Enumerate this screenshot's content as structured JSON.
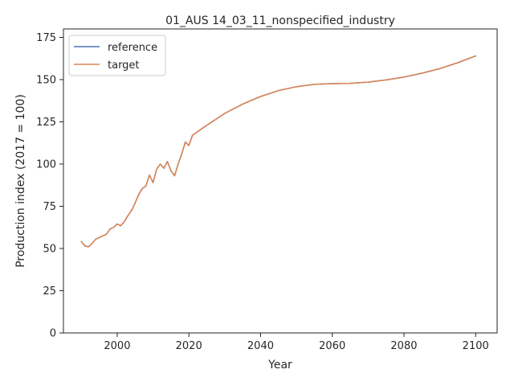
{
  "chart_data": {
    "type": "line",
    "title": "01_AUS 14_03_11_nonspecified_industry",
    "xlabel": "Year",
    "ylabel": "Production index (2017 = 100)",
    "xlim": [
      1985,
      2106
    ],
    "ylim": [
      0,
      180
    ],
    "xticks": [
      2000,
      2020,
      2040,
      2060,
      2080,
      2100
    ],
    "yticks": [
      0,
      25,
      50,
      75,
      100,
      125,
      150,
      175
    ],
    "grid": false,
    "legend_position": "top-left",
    "series": [
      {
        "name": "reference",
        "color": "#4c72b0",
        "x": [
          1990,
          1991,
          1992,
          1993,
          1994,
          1995,
          1996,
          1997,
          1998,
          1999,
          2000,
          2001,
          2002,
          2003,
          2004,
          2005,
          2006,
          2007,
          2008,
          2009,
          2010,
          2011,
          2012,
          2013,
          2014,
          2015,
          2016,
          2017,
          2018,
          2019,
          2020,
          2021,
          2025,
          2030,
          2035,
          2040,
          2045,
          2050,
          2055,
          2060,
          2065,
          2070,
          2075,
          2080,
          2085,
          2090,
          2095,
          2100
        ],
        "y": [
          54,
          51.5,
          51,
          53,
          55.5,
          56.5,
          57.5,
          58.5,
          61.5,
          62.5,
          64.5,
          63.5,
          66,
          69.5,
          72.5,
          77,
          82,
          85.5,
          87,
          93.5,
          89,
          97,
          100,
          97.5,
          101.5,
          96,
          93,
          100,
          106,
          113,
          111,
          117,
          123,
          130,
          135.5,
          140,
          143.5,
          145.8,
          147.2,
          147.6,
          147.8,
          148.5,
          149.8,
          151.5,
          153.8,
          156.5,
          160,
          164
        ]
      },
      {
        "name": "target",
        "color": "#dd8452",
        "x": [
          1990,
          1991,
          1992,
          1993,
          1994,
          1995,
          1996,
          1997,
          1998,
          1999,
          2000,
          2001,
          2002,
          2003,
          2004,
          2005,
          2006,
          2007,
          2008,
          2009,
          2010,
          2011,
          2012,
          2013,
          2014,
          2015,
          2016,
          2017,
          2018,
          2019,
          2020,
          2021,
          2025,
          2030,
          2035,
          2040,
          2045,
          2050,
          2055,
          2060,
          2065,
          2070,
          2075,
          2080,
          2085,
          2090,
          2095,
          2100
        ],
        "y": [
          54,
          51.5,
          51,
          53,
          55.5,
          56.5,
          57.5,
          58.5,
          61.5,
          62.5,
          64.5,
          63.5,
          66,
          69.5,
          72.5,
          77,
          82,
          85.5,
          87,
          93.5,
          89,
          97,
          100,
          97.5,
          101.5,
          96,
          93,
          100,
          106,
          113,
          111,
          117,
          123,
          130,
          135.5,
          140,
          143.5,
          145.8,
          147.2,
          147.6,
          147.8,
          148.5,
          149.8,
          151.5,
          153.8,
          156.5,
          160,
          164
        ]
      }
    ]
  }
}
